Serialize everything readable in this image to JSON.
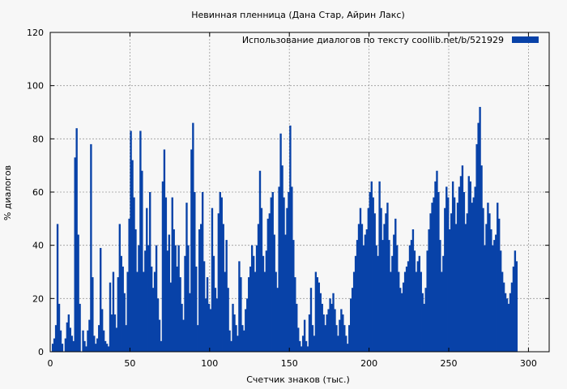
{
  "chart_data": {
    "type": "bar",
    "title": "Невинная пленница (Дана Стар, Айрин Лакс)",
    "xlabel": "Счетчик знаков (тыс.)",
    "ylabel": "% диалогов",
    "xlim": [
      0,
      313
    ],
    "ylim": [
      0,
      120
    ],
    "x_ticks": [
      0,
      50,
      100,
      150,
      200,
      250,
      300
    ],
    "y_ticks": [
      0,
      20,
      40,
      60,
      80,
      100,
      120
    ],
    "grid": true,
    "legend_position": "top-right",
    "series": [
      {
        "name": "Использование диалогов по тексту  coollib.net/b/521929",
        "color": "#0842a8",
        "x_start": 0,
        "x_step": 1,
        "values": [
          0,
          3,
          5,
          10,
          48,
          18,
          8,
          3,
          0,
          5,
          11,
          14,
          9,
          6,
          4,
          73,
          84,
          44,
          18,
          0,
          8,
          4,
          2,
          8,
          12,
          78,
          28,
          6,
          3,
          5,
          10,
          39,
          16,
          8,
          4,
          3,
          2,
          26,
          14,
          30,
          14,
          9,
          28,
          48,
          36,
          32,
          22,
          10,
          30,
          50,
          83,
          72,
          58,
          46,
          30,
          40,
          83,
          68,
          30,
          38,
          54,
          40,
          60,
          32,
          24,
          30,
          40,
          20,
          12,
          4,
          64,
          76,
          58,
          38,
          44,
          26,
          58,
          46,
          40,
          32,
          40,
          28,
          18,
          12,
          36,
          56,
          40,
          22,
          76,
          86,
          60,
          32,
          10,
          46,
          48,
          60,
          34,
          20,
          28,
          18,
          16,
          54,
          36,
          24,
          20,
          52,
          60,
          58,
          48,
          30,
          42,
          24,
          8,
          4,
          18,
          14,
          10,
          6,
          34,
          28,
          10,
          8,
          16,
          20,
          28,
          32,
          40,
          36,
          30,
          40,
          48,
          68,
          54,
          36,
          30,
          38,
          50,
          52,
          58,
          60,
          44,
          30,
          24,
          62,
          82,
          70,
          58,
          44,
          54,
          60,
          85,
          62,
          42,
          28,
          18,
          9,
          4,
          2,
          6,
          12,
          4,
          2,
          14,
          24,
          10,
          6,
          30,
          28,
          26,
          22,
          18,
          14,
          10,
          14,
          16,
          20,
          18,
          22,
          16,
          10,
          6,
          12,
          16,
          14,
          10,
          6,
          3,
          10,
          20,
          24,
          30,
          36,
          42,
          48,
          54,
          48,
          40,
          44,
          46,
          54,
          60,
          64,
          58,
          52,
          40,
          36,
          64,
          54,
          42,
          48,
          52,
          56,
          42,
          30,
          36,
          44,
          50,
          40,
          30,
          24,
          22,
          26,
          30,
          32,
          34,
          40,
          42,
          46,
          38,
          30,
          34,
          36,
          30,
          22,
          18,
          24,
          38,
          46,
          52,
          56,
          58,
          64,
          68,
          60,
          42,
          30,
          36,
          54,
          62,
          58,
          46,
          52,
          64,
          58,
          48,
          56,
          62,
          66,
          70,
          60,
          48,
          52,
          66,
          64,
          56,
          58,
          62,
          78,
          86,
          92,
          70,
          54,
          40,
          48,
          56,
          52,
          46,
          40,
          42,
          44,
          56,
          50,
          38,
          30,
          26,
          22,
          20,
          18,
          22,
          26,
          32,
          38,
          34
        ]
      }
    ]
  }
}
